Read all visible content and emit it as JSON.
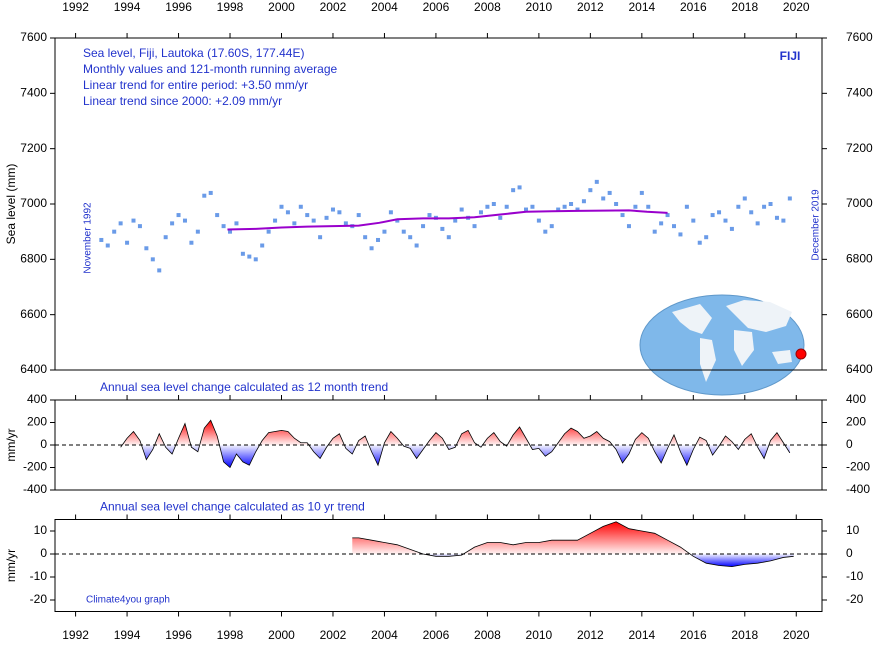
{
  "chart_data": [
    {
      "type": "scatter",
      "annotations": [
        "Sea level, Fiji, Lautoka (17.60S, 177.44E)",
        "Monthly values and 121-month running average",
        "Linear trend for entire period: +3.50 mm/yr",
        "Linear trend since 2000: +2.09 mm/yr"
      ],
      "label": "FIJI",
      "start_label": "November 1992",
      "end_label": "December 2019",
      "ylabel": "Sea level (mm)",
      "xlim": [
        1991.2,
        2021.0
      ],
      "xticks": [
        1992,
        1994,
        1996,
        1998,
        2000,
        2002,
        2004,
        2006,
        2008,
        2010,
        2012,
        2014,
        2016,
        2018,
        2020
      ],
      "ylim": [
        6400,
        7600
      ],
      "yticks": [
        6400,
        6600,
        6800,
        7000,
        7200,
        7400,
        7600
      ],
      "series": [
        {
          "type": "scatter",
          "color": "#6a9be8",
          "x": [
            1993,
            1993.25,
            1993.5,
            1993.75,
            1994,
            1994.25,
            1994.5,
            1994.75,
            1995,
            1995.25,
            1995.5,
            1995.75,
            1996,
            1996.25,
            1996.5,
            1996.75,
            1997,
            1997.25,
            1997.5,
            1997.75,
            1998,
            1998.25,
            1998.5,
            1998.75,
            1999,
            1999.25,
            1999.5,
            1999.75,
            2000,
            2000.25,
            2000.5,
            2000.75,
            2001,
            2001.25,
            2001.5,
            2001.75,
            2002,
            2002.25,
            2002.5,
            2002.75,
            2003,
            2003.25,
            2003.5,
            2003.75,
            2004,
            2004.25,
            2004.5,
            2004.75,
            2005,
            2005.25,
            2005.5,
            2005.75,
            2006,
            2006.25,
            2006.5,
            2006.75,
            2007,
            2007.25,
            2007.5,
            2007.75,
            2008,
            2008.25,
            2008.5,
            2008.75,
            2009,
            2009.25,
            2009.5,
            2009.75,
            2010,
            2010.25,
            2010.5,
            2010.75,
            2011,
            2011.25,
            2011.5,
            2011.75,
            2012,
            2012.25,
            2012.5,
            2012.75,
            2013,
            2013.25,
            2013.5,
            2013.75,
            2014,
            2014.25,
            2014.5,
            2014.75,
            2015,
            2015.25,
            2015.5,
            2015.75,
            2016,
            2016.25,
            2016.5,
            2016.75,
            2017,
            2017.25,
            2017.5,
            2017.75,
            2018,
            2018.25,
            2018.5,
            2018.75,
            2019,
            2019.25,
            2019.5,
            2019.75
          ],
          "values": [
            6870,
            6850,
            6900,
            6930,
            6860,
            6940,
            6920,
            6840,
            6800,
            6760,
            6880,
            6930,
            6960,
            6940,
            6860,
            6900,
            7030,
            7040,
            6960,
            6920,
            6900,
            6930,
            6820,
            6810,
            6800,
            6850,
            6900,
            6940,
            6990,
            6970,
            6930,
            6990,
            6960,
            6940,
            6880,
            6950,
            6980,
            6970,
            6930,
            6920,
            6960,
            6880,
            6840,
            6870,
            6900,
            6970,
            6940,
            6900,
            6880,
            6850,
            6920,
            6960,
            6950,
            6910,
            6880,
            6940,
            6980,
            6950,
            6920,
            6970,
            6990,
            7000,
            6950,
            6990,
            7050,
            7060,
            6980,
            6990,
            6940,
            6900,
            6920,
            6980,
            6990,
            7000,
            6980,
            7010,
            7050,
            7080,
            7020,
            7040,
            7000,
            6960,
            6920,
            6990,
            7040,
            6990,
            6900,
            6930,
            6960,
            6920,
            6890,
            6990,
            6940,
            6860,
            6880,
            6960,
            6970,
            6940,
            6910,
            6990,
            7020,
            6970,
            6930,
            6990,
            7000,
            6950,
            6940,
            7020
          ]
        },
        {
          "type": "line",
          "color": "#9900cc",
          "x": [
            1997.9,
            1999,
            2000,
            2001,
            2002,
            2003,
            2003.8,
            2004.5,
            2005.5,
            2006.5,
            2007.5,
            2008.5,
            2009.5,
            2010.5,
            2011.5,
            2012.5,
            2013.5,
            2014.2,
            2015
          ],
          "values": [
            6908,
            6910,
            6915,
            6918,
            6920,
            6922,
            6932,
            6945,
            6948,
            6948,
            6952,
            6962,
            6972,
            6974,
            6975,
            6976,
            6977,
            6972,
            6968
          ]
        }
      ]
    },
    {
      "type": "area",
      "title": "Annual sea level change calculated as 12 month trend",
      "ylabel": "mm/yr",
      "xlim": [
        1991.2,
        2021.0
      ],
      "xticks": [
        1992,
        1994,
        1996,
        1998,
        2000,
        2002,
        2004,
        2006,
        2008,
        2010,
        2012,
        2014,
        2016,
        2018,
        2020
      ],
      "ylim": [
        -400,
        400
      ],
      "yticks": [
        -400,
        -200,
        0,
        200,
        400
      ],
      "colors": {
        "positive": "#ff0000",
        "negative": "#0000ff"
      },
      "x": [
        1993.75,
        1994,
        1994.25,
        1994.5,
        1994.75,
        1995,
        1995.25,
        1995.5,
        1995.75,
        1996,
        1996.25,
        1996.5,
        1996.75,
        1997,
        1997.25,
        1997.5,
        1997.75,
        1998,
        1998.25,
        1998.5,
        1998.75,
        1999,
        1999.25,
        1999.5,
        1999.75,
        2000,
        2000.25,
        2000.5,
        2000.75,
        2001,
        2001.25,
        2001.5,
        2001.75,
        2002,
        2002.25,
        2002.5,
        2002.75,
        2003,
        2003.25,
        2003.5,
        2003.75,
        2004,
        2004.25,
        2004.5,
        2004.75,
        2005,
        2005.25,
        2005.5,
        2005.75,
        2006,
        2006.25,
        2006.5,
        2006.75,
        2007,
        2007.25,
        2007.5,
        2007.75,
        2008,
        2008.25,
        2008.5,
        2008.75,
        2009,
        2009.25,
        2009.5,
        2009.75,
        2010,
        2010.25,
        2010.5,
        2010.75,
        2011,
        2011.25,
        2011.5,
        2011.75,
        2012,
        2012.25,
        2012.5,
        2012.75,
        2013,
        2013.25,
        2013.5,
        2013.75,
        2014,
        2014.25,
        2014.5,
        2014.75,
        2015,
        2015.25,
        2015.5,
        2015.75,
        2016,
        2016.25,
        2016.5,
        2016.75,
        2017,
        2017.25,
        2017.5,
        2017.75,
        2018,
        2018.25,
        2018.5,
        2018.75,
        2019,
        2019.25,
        2019.5,
        2019.75
      ],
      "values": [
        -20,
        60,
        120,
        40,
        -130,
        -40,
        100,
        -20,
        -80,
        60,
        190,
        -20,
        -60,
        150,
        220,
        80,
        -150,
        -200,
        -80,
        -150,
        -180,
        -60,
        40,
        110,
        120,
        130,
        120,
        60,
        20,
        20,
        -60,
        -120,
        -20,
        60,
        100,
        -30,
        -80,
        40,
        80,
        -60,
        -180,
        20,
        120,
        60,
        -10,
        -30,
        -120,
        -40,
        40,
        110,
        60,
        -40,
        -20,
        100,
        130,
        20,
        -20,
        60,
        110,
        30,
        -10,
        90,
        160,
        60,
        -40,
        -30,
        -100,
        -60,
        20,
        100,
        150,
        120,
        60,
        80,
        120,
        60,
        30,
        -40,
        -160,
        -80,
        50,
        110,
        60,
        -60,
        -160,
        -30,
        90,
        -60,
        -180,
        -40,
        70,
        40,
        -90,
        -10,
        80,
        30,
        -40,
        50,
        100,
        -20,
        -120,
        40,
        110,
        20,
        -70
      ]
    },
    {
      "type": "area",
      "title": "Annual sea level change calculated as 10 yr trend",
      "ylabel": "mm/yr",
      "credit": "Climate4you graph",
      "xlim": [
        1991.2,
        2021.0
      ],
      "xticks": [
        1992,
        1994,
        1996,
        1998,
        2000,
        2002,
        2004,
        2006,
        2008,
        2010,
        2012,
        2014,
        2016,
        2018,
        2020
      ],
      "ylim": [
        -25,
        15
      ],
      "yticks": [
        -20,
        -10,
        0,
        10
      ],
      "colors": {
        "positive": "#ff0000",
        "negative": "#0000ff"
      },
      "x": [
        2002.75,
        2003,
        2003.5,
        2004,
        2004.5,
        2005,
        2005.5,
        2006,
        2006.5,
        2007,
        2007.5,
        2008,
        2008.5,
        2009,
        2009.5,
        2010,
        2010.5,
        2011,
        2011.5,
        2012,
        2012.5,
        2013,
        2013.5,
        2014,
        2014.5,
        2015,
        2015.5,
        2016,
        2016.5,
        2017,
        2017.5,
        2018,
        2018.5,
        2019,
        2019.5,
        2019.9
      ],
      "values": [
        7,
        7,
        6,
        5,
        4,
        2,
        0,
        -1,
        -1,
        -0.5,
        3,
        5,
        5,
        4,
        5,
        5,
        6,
        6,
        6,
        9,
        12,
        14,
        11,
        10,
        9,
        6,
        3,
        -1,
        -4,
        -5,
        -5.5,
        -4.5,
        -4,
        -3,
        -1.5,
        -1
      ]
    }
  ]
}
